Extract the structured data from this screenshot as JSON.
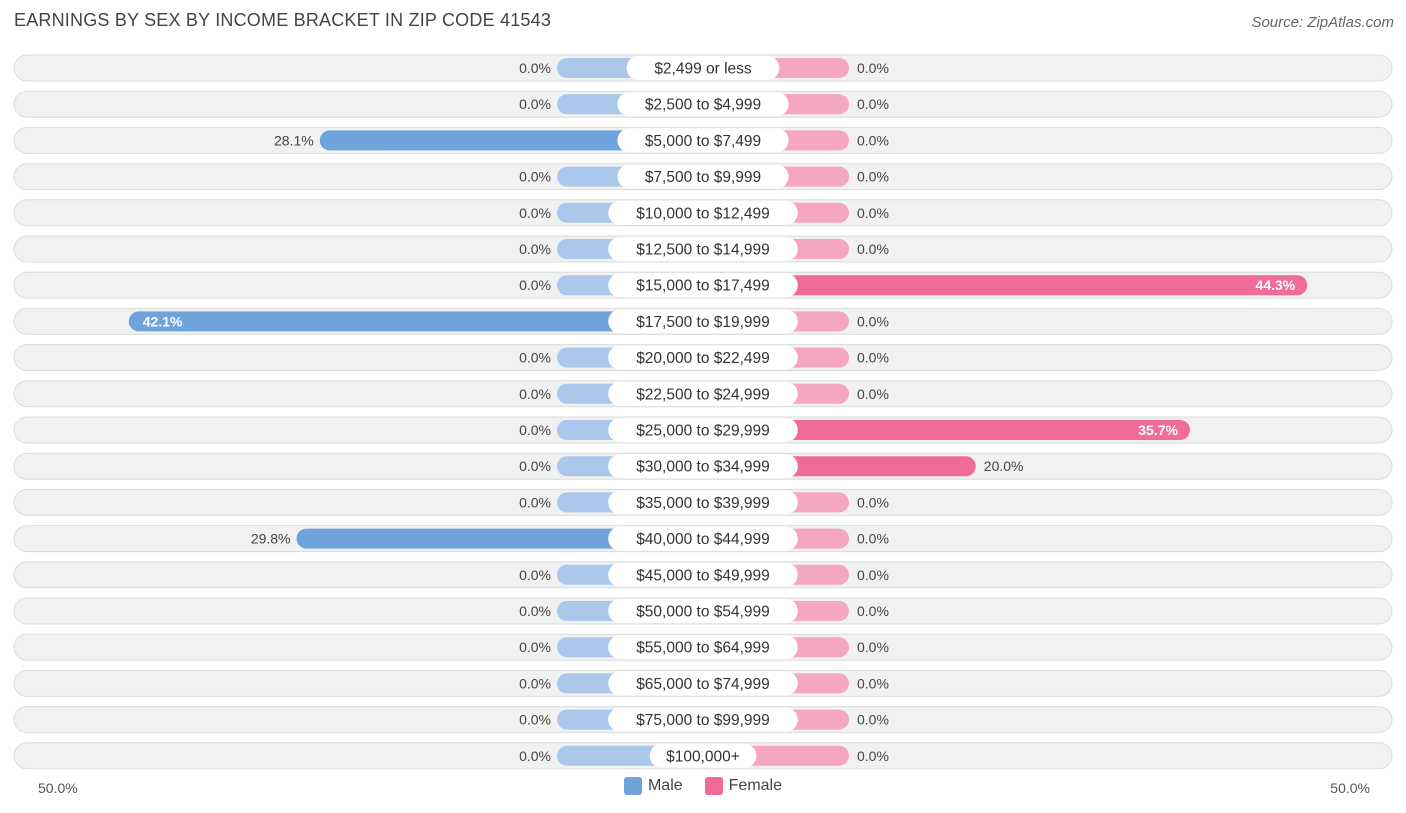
{
  "chart_data": {
    "type": "bar",
    "title": "EARNINGS BY SEX BY INCOME BRACKET IN ZIP CODE 41543",
    "source": "Source: ZipAtlas.com",
    "categories": [
      "$2,499 or less",
      "$2,500 to $4,999",
      "$5,000 to $7,499",
      "$7,500 to $9,999",
      "$10,000 to $12,499",
      "$12,500 to $14,999",
      "$15,000 to $17,499",
      "$17,500 to $19,999",
      "$20,000 to $22,499",
      "$22,500 to $24,999",
      "$25,000 to $29,999",
      "$30,000 to $34,999",
      "$35,000 to $39,999",
      "$40,000 to $44,999",
      "$45,000 to $49,999",
      "$50,000 to $54,999",
      "$55,000 to $64,999",
      "$65,000 to $74,999",
      "$75,000 to $99,999",
      "$100,000+"
    ],
    "series": [
      {
        "name": "Male",
        "values": [
          0,
          0,
          28.1,
          0,
          0,
          0,
          0,
          42.1,
          0,
          0,
          0,
          0,
          0,
          29.8,
          0,
          0,
          0,
          0,
          0,
          0
        ],
        "labels": [
          "0.0%",
          "0.0%",
          "28.1%",
          "0.0%",
          "0.0%",
          "0.0%",
          "0.0%",
          "42.1%",
          "0.0%",
          "0.0%",
          "0.0%",
          "0.0%",
          "0.0%",
          "29.8%",
          "0.0%",
          "0.0%",
          "0.0%",
          "0.0%",
          "0.0%",
          "0.0%"
        ]
      },
      {
        "name": "Female",
        "values": [
          0,
          0,
          0,
          0,
          0,
          0,
          44.3,
          0,
          0,
          0,
          35.7,
          20.0,
          0,
          0,
          0,
          0,
          0,
          0,
          0,
          0
        ],
        "labels": [
          "0.0%",
          "0.0%",
          "0.0%",
          "0.0%",
          "0.0%",
          "0.0%",
          "44.3%",
          "0.0%",
          "0.0%",
          "0.0%",
          "35.7%",
          "20.0%",
          "0.0%",
          "0.0%",
          "0.0%",
          "0.0%",
          "0.0%",
          "0.0%",
          "0.0%",
          "0.0%"
        ]
      }
    ],
    "axis_min_label": "50.0%",
    "axis_max_label": "50.0%",
    "xlim": [
      -50,
      50
    ],
    "colors": {
      "male": "#6fa3dc",
      "male_light": "#a9c8ec",
      "female": "#f06b97",
      "female_light": "#f5a6c0",
      "row_bg": "#f1f1f1",
      "row_border": "#dcdcdc"
    }
  }
}
